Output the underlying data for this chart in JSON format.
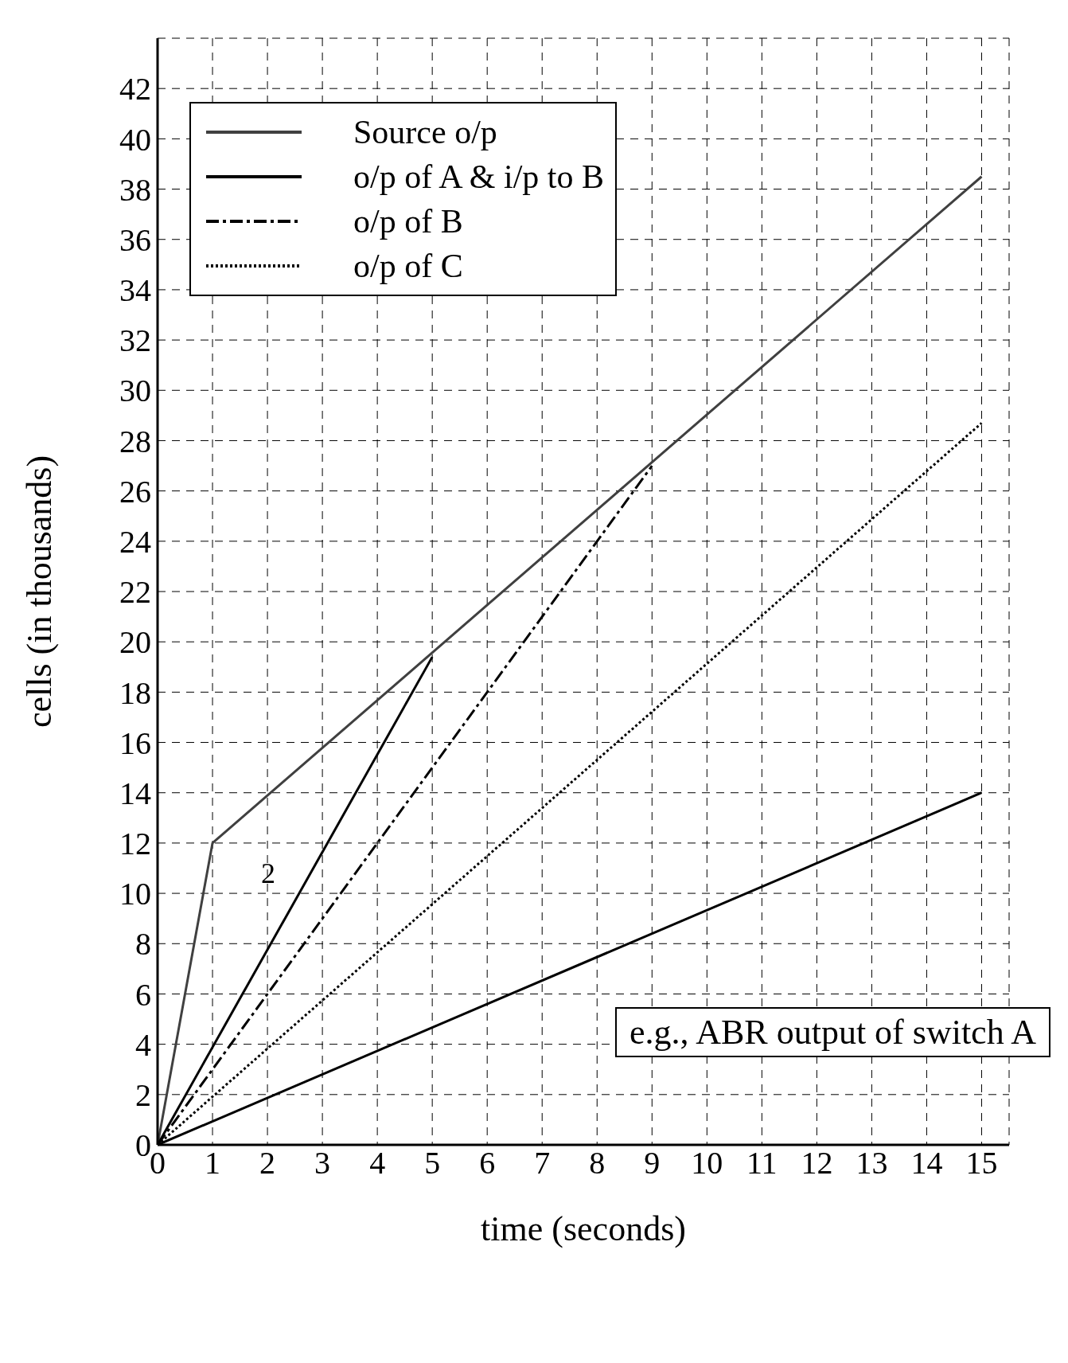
{
  "chart_data": {
    "type": "line",
    "xlabel": "time (seconds)",
    "ylabel": "cells (in thousands)",
    "xlim": [
      0,
      15.5
    ],
    "ylim": [
      0,
      44
    ],
    "xticks": [
      0,
      1,
      2,
      3,
      4,
      5,
      6,
      7,
      8,
      9,
      10,
      11,
      12,
      13,
      14,
      15
    ],
    "yticks": [
      0,
      2,
      4,
      6,
      8,
      10,
      12,
      14,
      16,
      18,
      20,
      22,
      24,
      26,
      28,
      30,
      32,
      34,
      36,
      38,
      40,
      42
    ],
    "grid": true,
    "legend": "top left",
    "series": [
      {
        "name": "Source o/p",
        "color": "#404040",
        "line_style": "solid",
        "x": [
          0,
          1,
          15
        ],
        "values": [
          0,
          12,
          38.5
        ]
      },
      {
        "name": "o/p of A & i/p to B",
        "color": "#000000",
        "line_style": "solid",
        "x": [
          0,
          5
        ],
        "values": [
          0,
          19.4
        ]
      },
      {
        "name": "o/p of B",
        "color": "#000000",
        "line_style": "dashed",
        "x": [
          0,
          9
        ],
        "values": [
          0,
          27
        ]
      },
      {
        "name": "o/p of C",
        "color": "#000000",
        "line_style": "dotted",
        "x": [
          0,
          15
        ],
        "values": [
          0,
          28.7
        ]
      },
      {
        "color": "#000000",
        "line_style": "solid",
        "x": [
          0,
          15
        ],
        "values": [
          0,
          14
        ]
      }
    ],
    "annotations": [
      "e.g., ABR output of switch A",
      "2"
    ]
  }
}
